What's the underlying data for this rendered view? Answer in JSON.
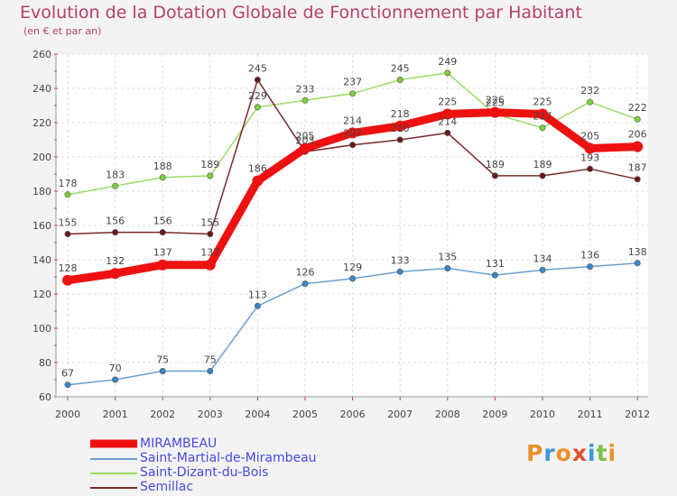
{
  "header": {
    "title": "Evolution de la Dotation Globale de Fonctionnement par Habitant",
    "subtitle": "(en € et par an)"
  },
  "logo": {
    "letters": [
      "P",
      "r",
      "o",
      "x",
      "i",
      "t",
      "i"
    ],
    "colors": [
      "#e8902a",
      "#3a9ad8",
      "#e8902a",
      "#e05030",
      "#3a9ad8",
      "#7cc04a",
      "#e8902a"
    ]
  },
  "chart_data": {
    "type": "line",
    "title": "Evolution de la Dotation Globale de Fonctionnement par Habitant",
    "subtitle": "(en € et par an)",
    "xlabel": "",
    "ylabel": "",
    "x": [
      "2000",
      "2001",
      "2002",
      "2003",
      "2004",
      "2005",
      "2006",
      "2007",
      "2008",
      "2009",
      "2010",
      "2011",
      "2012"
    ],
    "ylim": [
      60,
      260
    ],
    "yticks": [
      "60",
      "80",
      "100",
      "120",
      "140",
      "160",
      "180",
      "200",
      "220",
      "240",
      "260"
    ],
    "grid": true,
    "legend_position": "bottom-left",
    "series": [
      {
        "name": "MIRAMBEAU",
        "color": "#ee1111",
        "values": [
          128,
          132,
          137,
          137,
          186,
          205,
          214,
          218,
          225,
          226,
          225,
          205,
          206
        ],
        "labels": [
          "128",
          "132",
          "137",
          "137",
          "186",
          "205",
          "214",
          "218",
          "225",
          "226",
          "225",
          "205",
          "206"
        ]
      },
      {
        "name": "Saint-Martial-de-Mirambeau",
        "color": "#6a9fd0",
        "marker_color": "#3a86c8",
        "values": [
          67,
          70,
          75,
          75,
          113,
          126,
          129,
          133,
          135,
          131,
          134,
          136,
          138
        ],
        "labels": [
          "67",
          "70",
          "75",
          "75",
          "113",
          "126",
          "129",
          "133",
          "135",
          "131",
          "134",
          "136",
          "138"
        ]
      },
      {
        "name": "Saint-Dizant-du-Bois",
        "color": "#99dd66",
        "marker_color": "#7ccf3a",
        "values": [
          178,
          183,
          188,
          189,
          229,
          233,
          237,
          245,
          249,
          225,
          217,
          232,
          222
        ],
        "labels": [
          "178",
          "183",
          "188",
          "189",
          "229",
          "233",
          "237",
          "245",
          "249",
          "225",
          "217",
          "232",
          "222"
        ]
      },
      {
        "name": "Semillac",
        "color": "#7a2a2a",
        "marker_color": "#6a1a1a",
        "values": [
          155,
          156,
          156,
          155,
          245,
          203,
          207,
          210,
          214,
          189,
          189,
          193,
          187
        ],
        "labels": [
          "155",
          "156",
          "156",
          "155",
          "245",
          "203",
          "207",
          "210",
          "214",
          "189",
          "189",
          "193",
          "187"
        ]
      }
    ]
  }
}
